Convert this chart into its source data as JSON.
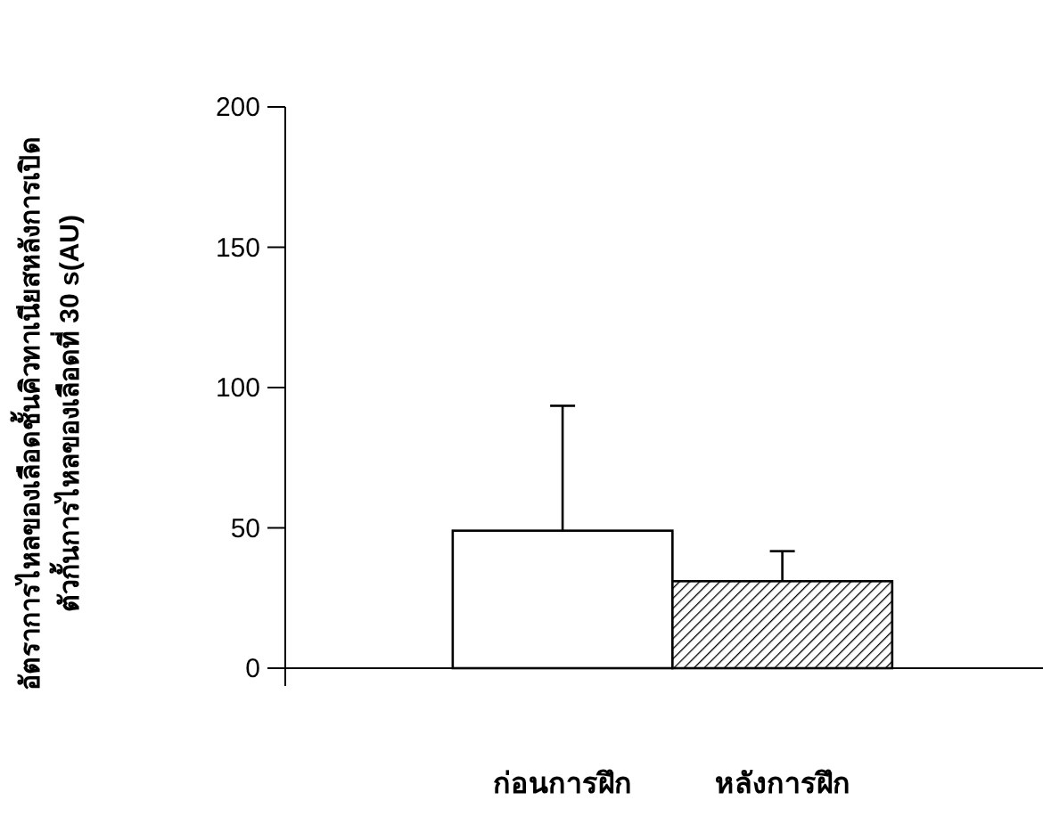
{
  "chart_data": {
    "type": "bar",
    "ylabel": "อัตราการไหลของเลือดชั้นคิวทาเนียสหลังการเปิด\nตัวกั้นการไหลของเลือดที่ 30 s(AU)",
    "categories": [
      "ก่อนการฝึก",
      "หลังการฝึก"
    ],
    "values": [
      49,
      31
    ],
    "errors": [
      [
        49,
        93.5
      ],
      [
        31,
        41.7
      ]
    ],
    "colors": [
      "#ffffff",
      "#000000"
    ],
    "ylim": [
      0,
      200
    ],
    "yticks": [
      0,
      50,
      100,
      150,
      200
    ],
    "grid": false
  }
}
